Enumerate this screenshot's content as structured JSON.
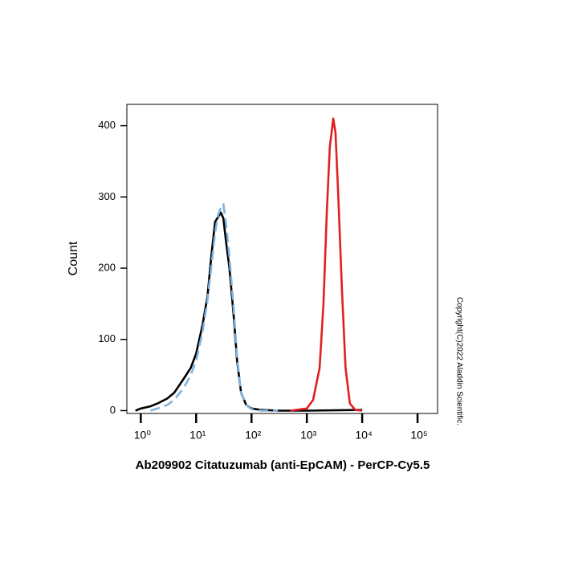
{
  "chart_data": {
    "type": "line",
    "y_label": "Count",
    "x_label": "Ab209902 Citatuzumab (anti-EpCAM) - PerCP-Cy5.5",
    "note": "Copyright(C)2022 Aladdin Scientific.",
    "xscale": "log",
    "xlim": [
      0.56,
      230000
    ],
    "ylim": [
      -4,
      430
    ],
    "xticks": [
      {
        "value": 1,
        "label": "10⁰"
      },
      {
        "value": 10,
        "label": "10¹"
      },
      {
        "value": 100,
        "label": "10²"
      },
      {
        "value": 1000,
        "label": "10³"
      },
      {
        "value": 10000,
        "label": "10⁴"
      },
      {
        "value": 100000,
        "label": "10⁵"
      }
    ],
    "yticks": [
      0,
      100,
      200,
      300,
      400
    ],
    "series": [
      {
        "color": "#000000",
        "dash": false,
        "x": [
          0.8,
          1,
          1.5,
          2,
          3,
          4,
          6,
          8,
          10,
          13,
          16,
          19,
          22,
          25,
          28,
          31,
          35,
          40,
          48,
          55,
          65,
          80,
          100,
          150,
          300,
          1000,
          10000
        ],
        "values": [
          0,
          3,
          6,
          10,
          17,
          25,
          45,
          60,
          80,
          120,
          160,
          220,
          265,
          272,
          278,
          270,
          235,
          200,
          130,
          70,
          25,
          8,
          3,
          1,
          0,
          0,
          1
        ]
      },
      {
        "color": "#7fb3e0",
        "dash": true,
        "x": [
          1.5,
          2,
          3,
          4,
          6,
          8,
          10,
          13,
          16,
          19,
          22,
          25,
          28,
          31,
          35,
          40,
          48,
          55,
          65,
          80,
          100,
          150,
          300
        ],
        "values": [
          0,
          3,
          8,
          15,
          32,
          50,
          70,
          110,
          155,
          205,
          250,
          275,
          285,
          290,
          260,
          215,
          140,
          75,
          25,
          8,
          2,
          0,
          0
        ]
      },
      {
        "color": "#e02020",
        "dash": false,
        "x": [
          500,
          1000,
          1300,
          1700,
          2000,
          2300,
          2600,
          3000,
          3300,
          3700,
          4300,
          5000,
          6000,
          7500,
          10000
        ],
        "values": [
          0,
          3,
          15,
          60,
          150,
          280,
          370,
          410,
          390,
          300,
          170,
          60,
          10,
          1,
          0
        ]
      }
    ]
  }
}
